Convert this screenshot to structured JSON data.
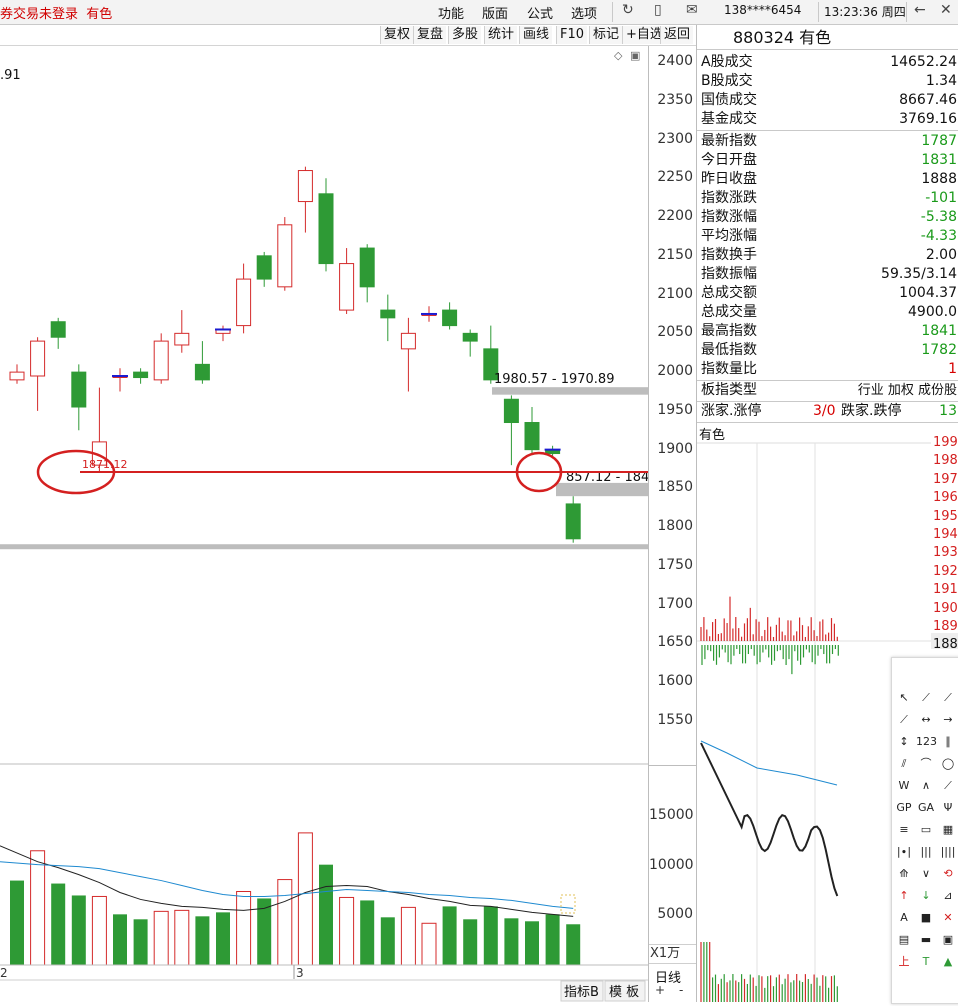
{
  "topbar": {
    "status": "券交易未登录",
    "board": "有色",
    "menus": [
      "功能",
      "版面",
      "公式",
      "选项"
    ],
    "account": "138****6454",
    "time": "13:23:36 周四",
    "icons": [
      "refresh-icon",
      "phone-icon",
      "mail-icon",
      "back-arrow-icon",
      "close-icon"
    ]
  },
  "toolbar": {
    "buttons": [
      "复权",
      "复盘",
      "多股",
      "统计",
      "画线",
      "F10",
      "标记",
      "+自选",
      "返回"
    ]
  },
  "chart": {
    "top_left_value": ".91",
    "low_label": "1871.12",
    "band1_label": "1980.57 - 1970.89",
    "band2_label": "857.12 - 184",
    "y_axis_price": [
      "2400",
      "2350",
      "2300",
      "2250",
      "2200",
      "2150",
      "2100",
      "2050",
      "2000",
      "1950",
      "1900",
      "1850",
      "1800",
      "1750",
      "1700",
      "1650",
      "1600",
      "1550"
    ],
    "y_axis_volume": [
      "15000",
      "10000",
      "5000"
    ],
    "volume_unit": "X1万",
    "x_labels": [
      "2",
      "3"
    ],
    "bottom_tabs": [
      "指标B",
      "模 板"
    ],
    "period_label": "日线",
    "zoom": [
      "+",
      "-"
    ]
  },
  "chart_data": {
    "type": "candlestick",
    "ylim": [
      1520,
      2420
    ],
    "candles": [
      {
        "o": 1990,
        "c": 2000,
        "h": 2010,
        "l": 1985,
        "dir": "up"
      },
      {
        "o": 1995,
        "c": 2040,
        "h": 2045,
        "l": 1950,
        "dir": "up"
      },
      {
        "o": 2065,
        "c": 2045,
        "h": 2070,
        "l": 2030,
        "dir": "down"
      },
      {
        "o": 2000,
        "c": 1955,
        "h": 2010,
        "l": 1925,
        "dir": "down"
      },
      {
        "o": 1880,
        "c": 1910,
        "h": 1980,
        "l": 1871.12,
        "dir": "up"
      },
      {
        "o": 1995,
        "c": 1995,
        "h": 2005,
        "l": 1975,
        "dir": "up"
      },
      {
        "o": 1993,
        "c": 2000,
        "h": 2005,
        "l": 1985,
        "dir": "down"
      },
      {
        "o": 1990,
        "c": 2040,
        "h": 2050,
        "l": 1985,
        "dir": "up"
      },
      {
        "o": 2035,
        "c": 2050,
        "h": 2080,
        "l": 2025,
        "dir": "up"
      },
      {
        "o": 2010,
        "c": 1990,
        "h": 2040,
        "l": 1985,
        "dir": "down"
      },
      {
        "o": 2050,
        "c": 2055,
        "h": 2060,
        "l": 2040,
        "dir": "up"
      },
      {
        "o": 2060,
        "c": 2120,
        "h": 2140,
        "l": 2050,
        "dir": "up"
      },
      {
        "o": 2150,
        "c": 2120,
        "h": 2155,
        "l": 2110,
        "dir": "down"
      },
      {
        "o": 2110,
        "c": 2190,
        "h": 2200,
        "l": 2105,
        "dir": "up"
      },
      {
        "o": 2220,
        "c": 2260,
        "h": 2265,
        "l": 2180,
        "dir": "up"
      },
      {
        "o": 2230,
        "c": 2140,
        "h": 2250,
        "l": 2130,
        "dir": "down"
      },
      {
        "o": 2080,
        "c": 2140,
        "h": 2160,
        "l": 2075,
        "dir": "up"
      },
      {
        "o": 2160,
        "c": 2110,
        "h": 2165,
        "l": 2090,
        "dir": "down"
      },
      {
        "o": 2080,
        "c": 2070,
        "h": 2100,
        "l": 2040,
        "dir": "down"
      },
      {
        "o": 2030,
        "c": 2050,
        "h": 2070,
        "l": 1975,
        "dir": "up"
      },
      {
        "o": 2075,
        "c": 2075,
        "h": 2085,
        "l": 2065,
        "dir": "up"
      },
      {
        "o": 2080,
        "c": 2060,
        "h": 2090,
        "l": 2055,
        "dir": "down"
      },
      {
        "o": 2050,
        "c": 2040,
        "h": 2055,
        "l": 2020,
        "dir": "down"
      },
      {
        "o": 2030,
        "c": 1990,
        "h": 2060,
        "l": 1985,
        "dir": "down"
      },
      {
        "o": 1965,
        "c": 1935,
        "h": 1970,
        "l": 1880,
        "dir": "down"
      },
      {
        "o": 1935,
        "c": 1900,
        "h": 1955,
        "l": 1895,
        "dir": "down"
      },
      {
        "o": 1900,
        "c": 1895,
        "h": 1905,
        "l": 1890,
        "dir": "down"
      },
      {
        "o": 1830,
        "c": 1785,
        "h": 1840,
        "l": 1780,
        "dir": "down"
      }
    ],
    "volumes": [
      {
        "v": 8500,
        "dir": "down"
      },
      {
        "v": 11500,
        "dir": "up"
      },
      {
        "v": 8200,
        "dir": "down"
      },
      {
        "v": 7000,
        "dir": "down"
      },
      {
        "v": 6900,
        "dir": "up"
      },
      {
        "v": 5100,
        "dir": "down"
      },
      {
        "v": 4600,
        "dir": "down"
      },
      {
        "v": 5400,
        "dir": "up"
      },
      {
        "v": 5500,
        "dir": "up"
      },
      {
        "v": 4900,
        "dir": "down"
      },
      {
        "v": 5300,
        "dir": "down"
      },
      {
        "v": 7400,
        "dir": "up"
      },
      {
        "v": 6700,
        "dir": "down"
      },
      {
        "v": 8600,
        "dir": "up"
      },
      {
        "v": 13300,
        "dir": "up"
      },
      {
        "v": 10100,
        "dir": "down"
      },
      {
        "v": 6800,
        "dir": "up"
      },
      {
        "v": 6500,
        "dir": "down"
      },
      {
        "v": 4800,
        "dir": "down"
      },
      {
        "v": 5800,
        "dir": "up"
      },
      {
        "v": 4200,
        "dir": "up"
      },
      {
        "v": 5900,
        "dir": "down"
      },
      {
        "v": 4600,
        "dir": "down"
      },
      {
        "v": 5900,
        "dir": "down"
      },
      {
        "v": 4700,
        "dir": "down"
      },
      {
        "v": 4400,
        "dir": "down"
      },
      {
        "v": 5100,
        "dir": "down"
      },
      {
        "v": 4100,
        "dir": "down"
      }
    ],
    "ma_short": [
      12000,
      10400,
      9800,
      9100,
      8300,
      7300,
      6600,
      6200,
      5900,
      5800,
      5600,
      5500,
      5700,
      6400,
      7300,
      7900,
      8000,
      7900,
      7400,
      7100,
      6700,
      6400,
      6000,
      5900,
      5600,
      5300,
      5100,
      4900
    ],
    "ma_long": [
      10400,
      10100,
      10000,
      9900,
      9700,
      9300,
      8900,
      8500,
      8000,
      7500,
      7100,
      6900,
      6900,
      7000,
      7200,
      7400,
      7600,
      7500,
      7400,
      7300,
      7100,
      7000,
      6800,
      6700,
      6500,
      6200,
      5900,
      5700
    ],
    "band1": [
      1980.57,
      1970.89
    ],
    "band2": [
      1857.12,
      1840
    ],
    "support_line": 1871.12,
    "bottom_grey_line": 1778
  },
  "right_panel": {
    "code": "880324",
    "name": "有色",
    "group1": [
      {
        "k": "A股成交",
        "v": "14652.24",
        "c": "dark"
      },
      {
        "k": "B股成交",
        "v": "1.34",
        "c": "dark"
      },
      {
        "k": "国债成交",
        "v": "8667.46",
        "c": "dark"
      },
      {
        "k": "基金成交",
        "v": "3769.16",
        "c": "dark"
      }
    ],
    "group2": [
      {
        "k": "最新指数",
        "v": "1787",
        "c": "green"
      },
      {
        "k": "今日开盘",
        "v": "1831",
        "c": "green"
      },
      {
        "k": "昨日收盘",
        "v": "1888",
        "c": "dark"
      },
      {
        "k": "指数涨跌",
        "v": "-101",
        "c": "green"
      },
      {
        "k": "指数涨幅",
        "v": "-5.38",
        "c": "green"
      },
      {
        "k": "平均涨幅",
        "v": "-4.33",
        "c": "green"
      },
      {
        "k": "指数换手",
        "v": "2.00",
        "c": "dark"
      },
      {
        "k": "指数振幅",
        "v": "59.35/3.14",
        "c": "dark"
      },
      {
        "k": "总成交额",
        "v": "1004.37",
        "c": "dark"
      },
      {
        "k": "总成交量",
        "v": "4900.0",
        "c": "dark"
      },
      {
        "k": "最高指数",
        "v": "1841",
        "c": "green"
      },
      {
        "k": "最低指数",
        "v": "1782",
        "c": "green"
      },
      {
        "k": "指数量比",
        "v": "1",
        "c": "red"
      }
    ],
    "board_type_label": "板指类型",
    "board_type_value": "行业 加权 成份股",
    "rise_limit_label": "涨家.涨停",
    "rise_limit_value": "3/0",
    "fall_limit_label": "跌家.跌停",
    "fall_limit_value": "13",
    "mini_title": "有色",
    "mini_ticks": [
      "199",
      "198",
      "197",
      "196",
      "195",
      "194",
      "193",
      "192",
      "191",
      "190",
      "189",
      "188"
    ],
    "mini_current": "188"
  },
  "drawing_tools": [
    "cursor-icon",
    "line-icon",
    "ray-icon",
    "segment-icon",
    "hline-icon",
    "arrow-line-icon",
    "vline-icon",
    "fib-icon",
    "parallel-icon",
    "channel-icon",
    "arc-icon",
    "circle-icon",
    "wave-icon",
    "zigzag-icon",
    "trend-icon",
    "gp-icon",
    "ga-icon",
    "pitchfork-icon",
    "text-lines-icon",
    "box-icon",
    "grid-icon",
    "period-icon",
    "bars-icon",
    "vbars-icon",
    "fan-icon",
    "down-arrow-icon",
    "rotate-icon",
    "up-arrow-icon",
    "down-green-icon",
    "tag-icon",
    "text-icon",
    "square-icon",
    "delete-icon",
    "note-icon",
    "ruler-icon",
    "scale-icon",
    "up-mark-icon",
    "t-mark-icon",
    "triangle-icon"
  ]
}
